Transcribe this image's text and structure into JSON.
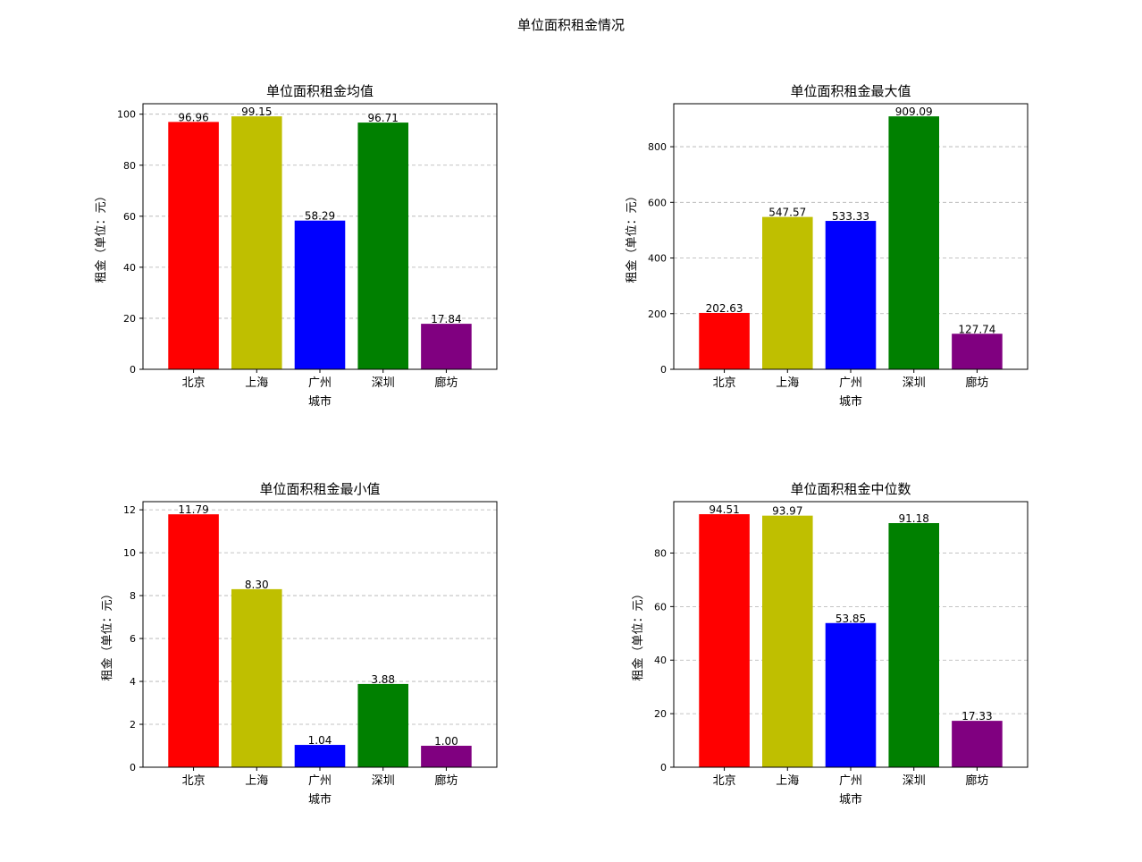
{
  "figure": {
    "suptitle": "单位面积租金情况"
  },
  "chart_data": [
    {
      "type": "bar",
      "title": "单位面积租金均值",
      "xlabel": "城市",
      "ylabel": "租金（单位：元）",
      "categories": [
        "北京",
        "上海",
        "广州",
        "深圳",
        "廊坊"
      ],
      "values": [
        96.96,
        99.15,
        58.29,
        96.71,
        17.84
      ],
      "value_labels": [
        "96.96",
        "99.15",
        "58.29",
        "96.71",
        "17.84"
      ],
      "colors": [
        "#ff0000",
        "#bfbf00",
        "#0000ff",
        "#008000",
        "#800080"
      ],
      "ylim": [
        0,
        104.1
      ],
      "yticks": [
        0,
        20,
        40,
        60,
        80,
        100
      ],
      "grid": "y-dashed"
    },
    {
      "type": "bar",
      "title": "单位面积租金最大值",
      "xlabel": "城市",
      "ylabel": "租金（单位：元）",
      "categories": [
        "北京",
        "上海",
        "广州",
        "深圳",
        "廊坊"
      ],
      "values": [
        202.63,
        547.57,
        533.33,
        909.09,
        127.74
      ],
      "value_labels": [
        "202.63",
        "547.57",
        "533.33",
        "909.09",
        "127.74"
      ],
      "colors": [
        "#ff0000",
        "#bfbf00",
        "#0000ff",
        "#008000",
        "#800080"
      ],
      "ylim": [
        0,
        954.5
      ],
      "yticks": [
        0,
        200,
        400,
        600,
        800
      ],
      "grid": "y-dashed"
    },
    {
      "type": "bar",
      "title": "单位面积租金最小值",
      "xlabel": "城市",
      "ylabel": "租金（单位：元）",
      "categories": [
        "北京",
        "上海",
        "广州",
        "深圳",
        "廊坊"
      ],
      "values": [
        11.79,
        8.3,
        1.04,
        3.88,
        1.0
      ],
      "value_labels": [
        "11.79",
        "8.30",
        "1.04",
        "3.88",
        "1.00"
      ],
      "colors": [
        "#ff0000",
        "#bfbf00",
        "#0000ff",
        "#008000",
        "#800080"
      ],
      "ylim": [
        0,
        12.38
      ],
      "yticks": [
        0,
        2,
        4,
        6,
        8,
        10,
        12
      ],
      "grid": "y-dashed"
    },
    {
      "type": "bar",
      "title": "单位面积租金中位数",
      "xlabel": "城市",
      "ylabel": "租金（单位：元）",
      "categories": [
        "北京",
        "上海",
        "广州",
        "深圳",
        "廊坊"
      ],
      "values": [
        94.51,
        93.97,
        53.85,
        91.18,
        17.33
      ],
      "value_labels": [
        "94.51",
        "93.97",
        "53.85",
        "91.18",
        "17.33"
      ],
      "colors": [
        "#ff0000",
        "#bfbf00",
        "#0000ff",
        "#008000",
        "#800080"
      ],
      "ylim": [
        0,
        99.2
      ],
      "yticks": [
        0,
        20,
        40,
        60,
        80
      ],
      "grid": "y-dashed"
    }
  ]
}
